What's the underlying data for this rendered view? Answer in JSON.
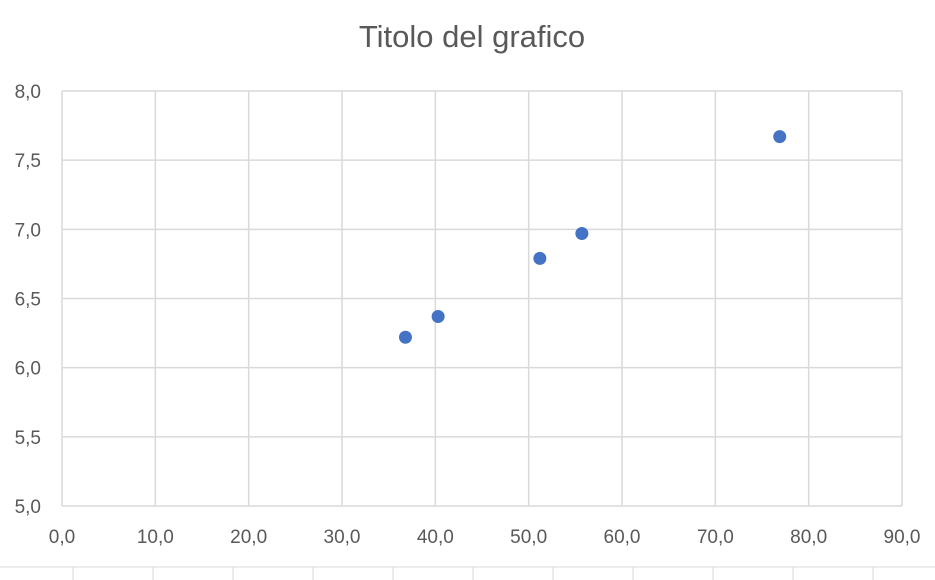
{
  "chart_data": {
    "type": "scatter",
    "title": "Titolo del grafico",
    "xlabel": "",
    "ylabel": "",
    "xlim": [
      0,
      90
    ],
    "ylim": [
      5,
      8
    ],
    "x_ticks": [
      "0,0",
      "10,0",
      "20,0",
      "30,0",
      "40,0",
      "50,0",
      "60,0",
      "70,0",
      "80,0",
      "90,0"
    ],
    "y_ticks": [
      "5,0",
      "5,5",
      "6,0",
      "6,5",
      "7,0",
      "7,5",
      "8,0"
    ],
    "grid": true,
    "legend": "none",
    "series": [
      {
        "color": "#4472c4",
        "points": [
          {
            "x": 36.8,
            "y": 6.22
          },
          {
            "x": 40.3,
            "y": 6.37
          },
          {
            "x": 51.2,
            "y": 6.79
          },
          {
            "x": 55.7,
            "y": 6.97
          },
          {
            "x": 76.9,
            "y": 7.67
          }
        ]
      }
    ]
  }
}
